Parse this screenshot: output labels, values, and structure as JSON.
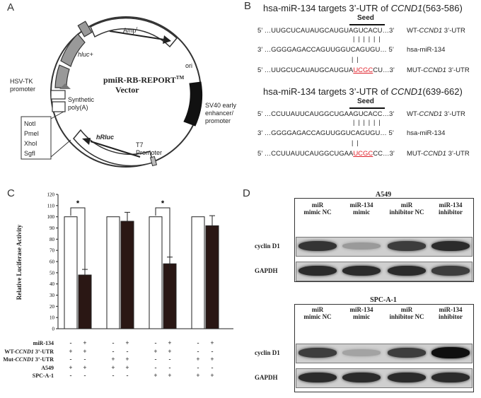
{
  "panels": {
    "a": "A",
    "b": "B",
    "c": "C",
    "d": "D"
  },
  "vector": {
    "name": "pmiR-RB-REPORT",
    "tm": "TM",
    "subtitle": "Vector",
    "labels": {
      "ampr": "Amp",
      "ampr_sup": "r",
      "hluc": "hluc+",
      "hsv": "HSV-TK\npromoter",
      "synthetic": "Synthetic\npoly(A)",
      "ori": "ori",
      "sv40": "SV40 early\nenhancer/\npromoter",
      "t7": "T7\nPromoter",
      "hrluc": "hRluc"
    },
    "sites": [
      "NotI",
      "PmeI",
      "XhoI",
      "SgfI"
    ]
  },
  "targets": [
    {
      "title_prefix": "hsa-miR-134 targets 3’-UTR of ",
      "gene": "CCND1",
      "title_suffix": "(563-586)",
      "seed": "Seed",
      "wt_seq": "5’ …UUGCUCAUAUGCAUGUAGUCACU…3’",
      "wt_label_prefix": "WT-",
      "wt_label_suffix": " 3’-UTR",
      "pairs": "|  |  |  |  |  |",
      "mir_seq": "3’ …GGGGAGACCAGUUGGUCAGUGU… 5’",
      "mir_label": "hsa-miR-134",
      "mut_pairs": "|           |",
      "mut_pre": "5’ …UUGCUCAUAUGCAUGUA",
      "mut_mid": "UCGC",
      "mut_post": "CU…3’",
      "mut_label_prefix": "MUT-",
      "mut_label_suffix": " 3’-UTR"
    },
    {
      "title_prefix": "hsa-miR-134 targets 3’-UTR of ",
      "gene": "CCND1",
      "title_suffix": "(639-662)",
      "seed": "Seed",
      "wt_seq": "5’ …CCUUAUUCAUGGCUGAAGUCACC…3’",
      "wt_label_prefix": "WT-",
      "wt_label_suffix": " 3’-UTR",
      "pairs": "|  |  |  |  |  |",
      "mir_seq": "3’ …GGGGAGACCAGUUGGUCAGUGU… 5’",
      "mir_label": "hsa-miR-134",
      "mut_pairs": "|           |",
      "mut_pre": "5’ …CCUUAUUCAUGGCUGAA",
      "mut_mid": "UCGC",
      "mut_post": "CC…3’",
      "mut_label_prefix": "MUT-",
      "mut_label_suffix": " 3’-UTR"
    }
  ],
  "chart_data": {
    "type": "bar",
    "ylabel": "Relative Luciferase Activity",
    "ylim": [
      0,
      120
    ],
    "yticks": [
      0,
      10,
      20,
      30,
      40,
      50,
      60,
      70,
      80,
      90,
      100,
      110,
      120
    ],
    "bars": [
      {
        "value": 100,
        "error": 0,
        "fill": "white"
      },
      {
        "value": 48,
        "error": 5,
        "fill": "black"
      },
      {
        "value": 100,
        "error": 0,
        "fill": "white"
      },
      {
        "value": 96,
        "error": 8,
        "fill": "black"
      },
      {
        "value": 100,
        "error": 0,
        "fill": "white"
      },
      {
        "value": 58,
        "error": 6,
        "fill": "black"
      },
      {
        "value": 100,
        "error": 0,
        "fill": "white"
      },
      {
        "value": 92,
        "error": 9,
        "fill": "black"
      }
    ],
    "significance": [
      {
        "bars": [
          0,
          1
        ],
        "label": "*"
      },
      {
        "bars": [
          4,
          5
        ],
        "label": "*"
      }
    ],
    "conditions": [
      {
        "label": "miR-134",
        "signs": [
          "-",
          "+",
          "-",
          "+",
          "-",
          "+",
          "-",
          "+"
        ]
      },
      {
        "label_prefix": "WT-",
        "gene": "CCND1",
        "label_suffix": " 3’-UTR",
        "signs": [
          "+",
          "+",
          "-",
          "-",
          "+",
          "+",
          "-",
          "-"
        ]
      },
      {
        "label_prefix": "Mut-",
        "gene": "CCND1",
        "label_suffix": " 3’-UTR",
        "signs": [
          "-",
          "-",
          "+",
          "+",
          "-",
          "-",
          "+",
          "+"
        ]
      },
      {
        "label": "A549",
        "signs": [
          "+",
          "+",
          "+",
          "+",
          "-",
          "-",
          "-",
          "-"
        ]
      },
      {
        "label": "SPC-A-1",
        "signs": [
          "-",
          "-",
          "-",
          "-",
          "+",
          "+",
          "+",
          "+"
        ]
      }
    ]
  },
  "blots": [
    {
      "title": "A549",
      "columns": [
        "miR\nmimic NC",
        "miR-134\nmimic",
        "miR\ninhibitor NC",
        "miR-134\ninhibitor"
      ],
      "rows": [
        {
          "label": "cyclin D1",
          "intensity": [
            0.8,
            0.25,
            0.75,
            0.85
          ]
        },
        {
          "label": "GAPDH",
          "intensity": [
            0.85,
            0.85,
            0.85,
            0.75
          ]
        }
      ]
    },
    {
      "title": "SPC-A-1",
      "columns": [
        "miR\nmimic NC",
        "miR-134\nmimic",
        "miR\ninhibitor NC",
        "miR-134\ninhibitor"
      ],
      "rows": [
        {
          "label": "cyclin D1",
          "intensity": [
            0.75,
            0.2,
            0.75,
            1.0
          ]
        },
        {
          "label": "GAPDH",
          "intensity": [
            0.85,
            0.85,
            0.85,
            0.85
          ]
        }
      ]
    }
  ]
}
